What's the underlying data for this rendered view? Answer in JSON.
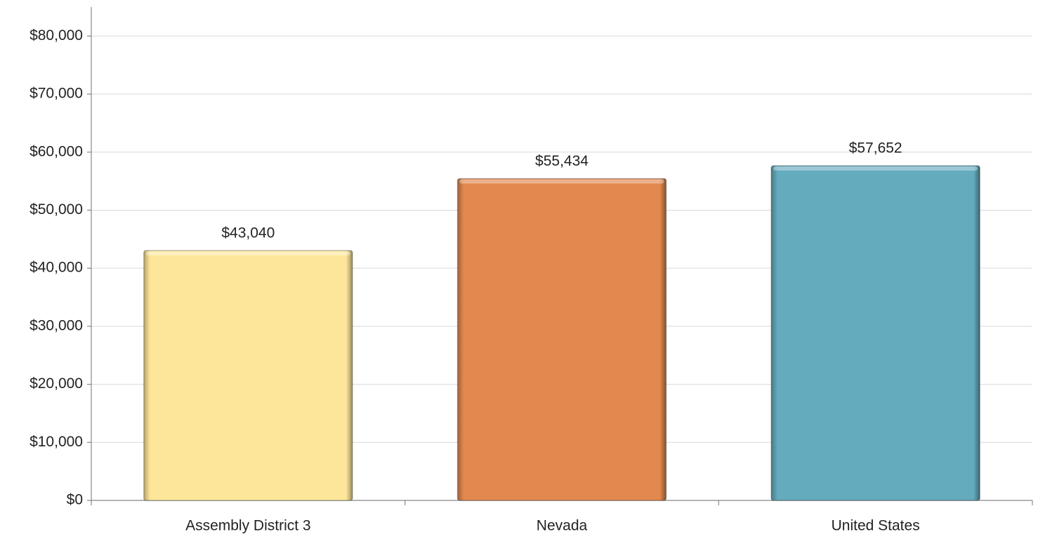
{
  "chart_data": {
    "type": "bar",
    "categories": [
      "Assembly District 3",
      "Nevada",
      "United States"
    ],
    "values": [
      43040,
      55434,
      57652
    ],
    "value_labels": [
      "$43,040",
      "$55,434",
      "$57,652"
    ],
    "colors": [
      "#fde699",
      "#e2894f",
      "#64abbd"
    ],
    "ylim": [
      0,
      85000
    ],
    "yticks": [
      {
        "value": 0,
        "label": "$0"
      },
      {
        "value": 10000,
        "label": "$10,000"
      },
      {
        "value": 20000,
        "label": "$20,000"
      },
      {
        "value": 30000,
        "label": "$30,000"
      },
      {
        "value": 40000,
        "label": "$40,000"
      },
      {
        "value": 50000,
        "label": "$50,000"
      },
      {
        "value": 60000,
        "label": "$60,000"
      },
      {
        "value": 70000,
        "label": "$70,000"
      },
      {
        "value": 80000,
        "label": "$80,000"
      }
    ],
    "grid": true
  }
}
